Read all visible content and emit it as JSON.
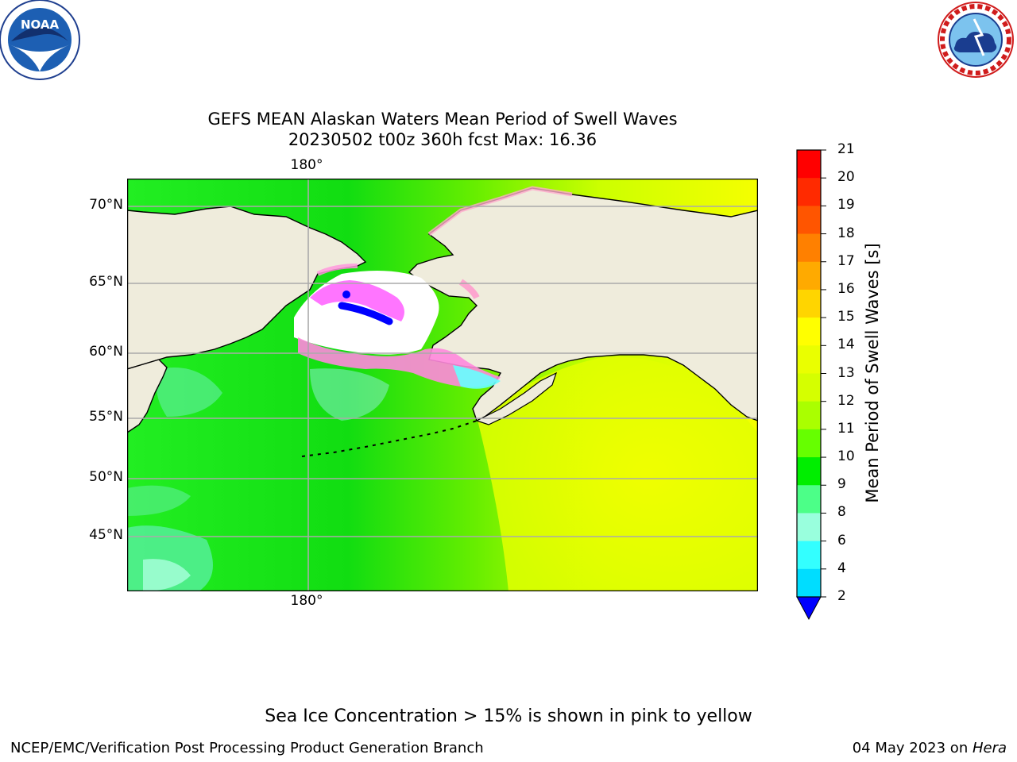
{
  "title": {
    "line1": "GEFS MEAN Alaskan Waters Mean Period of Swell Waves",
    "line2": "20230502 t00z 360h fcst   Max: 16.36"
  },
  "map": {
    "lat_labels": [
      "70°N",
      "65°N",
      "60°N",
      "55°N",
      "50°N",
      "45°N"
    ],
    "lon_label_top": "180°",
    "lon_label_bottom": "180°",
    "land_color": "#efecdc",
    "ice_colors": [
      "#ff66ff",
      "#ff99cc",
      "#ffcc99",
      "#ffff66"
    ]
  },
  "colorbar": {
    "label": "Mean Period of Swell Waves [s]",
    "ticks": [
      "21",
      "20",
      "19",
      "18",
      "17",
      "16",
      "15",
      "14",
      "13",
      "12",
      "11",
      "10",
      "9",
      "8",
      "6",
      "4",
      "2"
    ],
    "colors": [
      "#ff0000",
      "#ff2a00",
      "#ff5500",
      "#ff8000",
      "#ffaa00",
      "#ffd500",
      "#ffff00",
      "#eaff00",
      "#d5ff00",
      "#aaff00",
      "#66ff00",
      "#00ee00",
      "#4cff88",
      "#99ffdd",
      "#33ffff",
      "#00ddff",
      "#0099ff",
      "#0066ff"
    ],
    "under_color": "#0000ff"
  },
  "note": "Sea Ice Concentration > 15% is shown in pink to yellow",
  "footer": {
    "left": "NCEP/EMC/Verification Post Processing Product Generation Branch",
    "right_date": "04 May 2023 on ",
    "right_host": "Hera"
  }
}
